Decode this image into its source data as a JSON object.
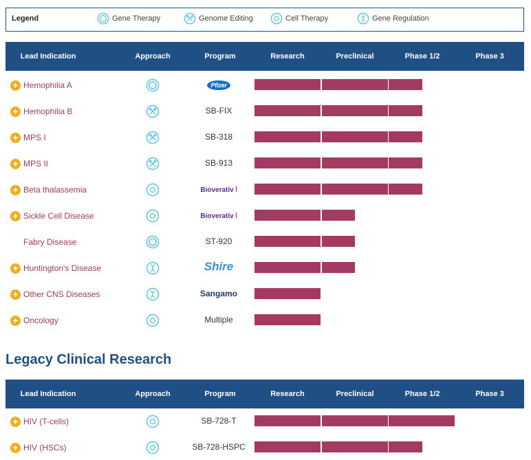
{
  "legend": {
    "title": "Legend",
    "items": [
      {
        "label": "Gene Therapy",
        "icon": "gene-therapy-icon"
      },
      {
        "label": "Genome Editing",
        "icon": "genome-editing-icon"
      },
      {
        "label": "Cell Therapy",
        "icon": "cell-therapy-icon"
      },
      {
        "label": "Gene Regulation",
        "icon": "gene-regulation-icon"
      }
    ]
  },
  "columns": [
    "Lead Indication",
    "Approach",
    "Program",
    "Research",
    "Preclinical",
    "Phase 1/2",
    "Phase 3"
  ],
  "pipeline": [
    {
      "indication": "Hemophilia A",
      "expandable": true,
      "approach": "gene-therapy",
      "program": "Pfizer",
      "program_type": "pfizer",
      "stage": 2.5
    },
    {
      "indication": "Hemophilia B",
      "expandable": true,
      "approach": "genome-editing",
      "program": "SB-FIX",
      "program_type": "text",
      "stage": 2.5
    },
    {
      "indication": "MPS I",
      "expandable": true,
      "approach": "genome-editing",
      "program": "SB-318",
      "program_type": "text",
      "stage": 2.5
    },
    {
      "indication": "MPS II",
      "expandable": true,
      "approach": "genome-editing",
      "program": "SB-913",
      "program_type": "text",
      "stage": 2.5
    },
    {
      "indication": "Beta thalassemia",
      "expandable": true,
      "approach": "cell-therapy",
      "program": "Bioverativ",
      "program_type": "bioverativ",
      "stage": 2.5
    },
    {
      "indication": "Sickle Cell Disease",
      "expandable": true,
      "approach": "cell-therapy",
      "program": "Bioverativ",
      "program_type": "bioverativ",
      "stage": 1.5
    },
    {
      "indication": "Fabry Disease",
      "expandable": false,
      "approach": "gene-therapy",
      "program": "ST-920",
      "program_type": "text",
      "stage": 1.5
    },
    {
      "indication": "Huntington's Disease",
      "expandable": true,
      "approach": "gene-regulation",
      "program": "Shire",
      "program_type": "shire",
      "stage": 1.5
    },
    {
      "indication": "Other CNS Diseases",
      "expandable": true,
      "approach": "gene-regulation",
      "program": "Sangamo",
      "program_type": "sangamo",
      "stage": 1.0
    },
    {
      "indication": "Oncology",
      "expandable": true,
      "approach": "cell-therapy",
      "program": "Multiple",
      "program_type": "text",
      "stage": 1.0
    }
  ],
  "legacy": {
    "title": "Legacy Clinical Research",
    "rows": [
      {
        "indication": "HIV (T-cells)",
        "expandable": true,
        "approach": "cell-therapy",
        "program": "SB-728-T",
        "program_type": "text",
        "stage": 3.0
      },
      {
        "indication": "HIV (HSCs)",
        "expandable": true,
        "approach": "cell-therapy",
        "program": "SB-728-HSPC",
        "program_type": "text",
        "stage": 2.5
      }
    ]
  },
  "colors": {
    "header": "#1f4f84",
    "bar": "#a23a62",
    "plus": "#f0ac1b",
    "indication": "#9e3b5e",
    "icon": "#5cc4e0"
  }
}
